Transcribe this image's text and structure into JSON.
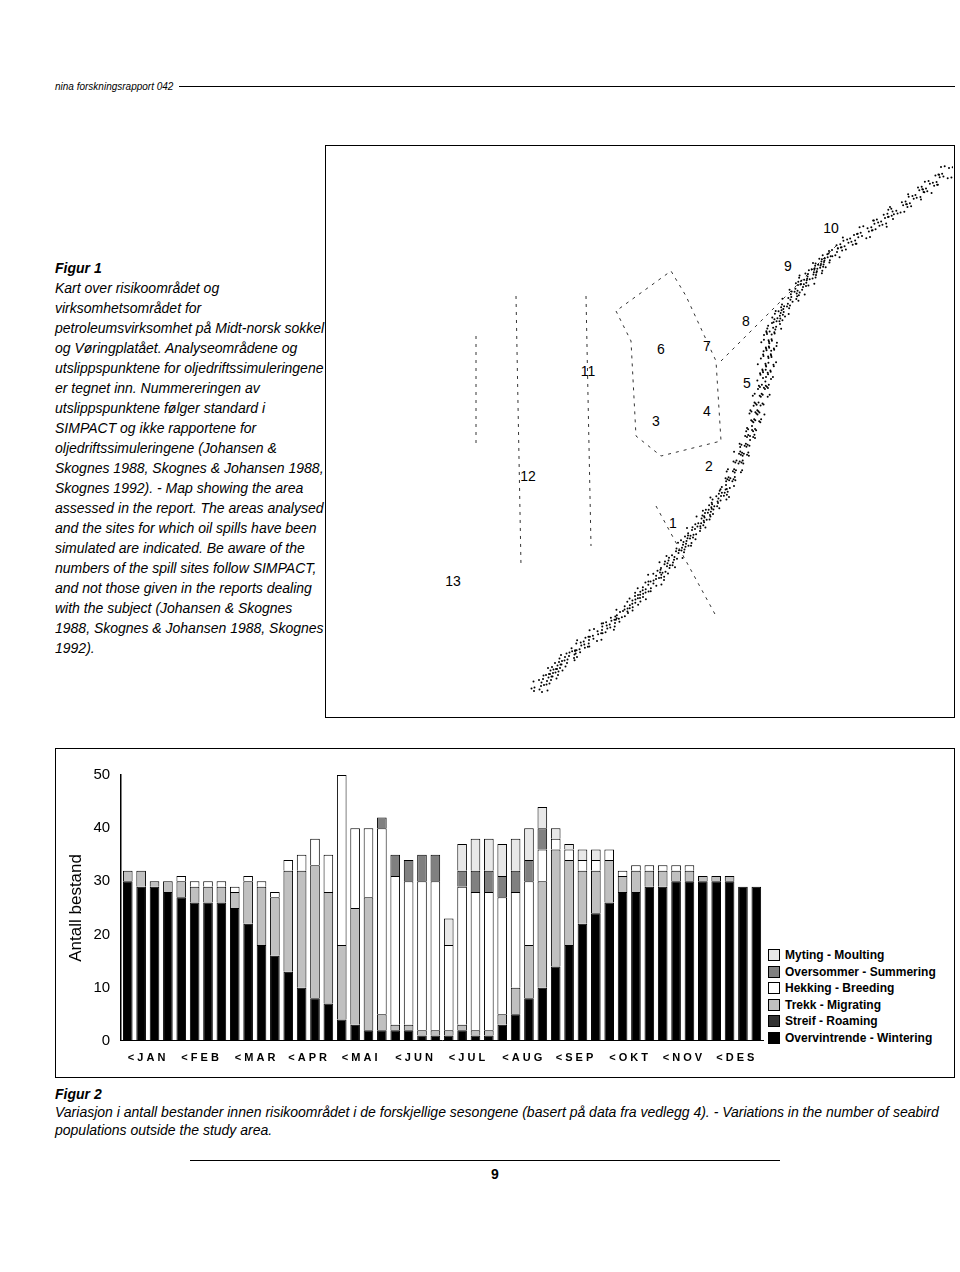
{
  "header": {
    "text": "nina forskningsrapport 042"
  },
  "figure1": {
    "title": "Figur 1",
    "caption": "Kart over risikoområdet og virksomhetsområdet for petroleumsvirksomhet på Midt-norsk sokkel og Vøringplatået. Analyseområdene og utslippspunktene for oljedriftssimuleringene er tegnet inn. Nummereringen av utslippspunktene følger standard i SIMPACT og ikke rapportene for oljedriftssimuleringene (Johansen & Skognes 1988, Skognes & Johansen 1988, Skognes 1992). - Map showing the area assessed in the report. The areas analysed and the sites for which oil spills have been simulated are indicated. Be aware of the numbers of the spill sites follow SIMPACT, and not those given in the reports dealing with the subject (Johansen & Skognes 1988, Skognes & Johansen 1988, Skognes 1992).",
    "map_labels": [
      "1",
      "2",
      "3",
      "4",
      "5",
      "6",
      "7",
      "8",
      "9",
      "10",
      "11",
      "12",
      "13"
    ]
  },
  "chart_data": {
    "type": "bar",
    "stacked": true,
    "y_label": "Antall bestand",
    "categories": [
      "< J A N",
      null,
      null,
      null,
      "< F E B",
      null,
      null,
      null,
      "< M A R",
      null,
      null,
      null,
      "< A P R",
      null,
      null,
      null,
      "< M A I",
      null,
      null,
      null,
      "< J U N",
      null,
      null,
      null,
      "< J U L",
      null,
      null,
      null,
      "< A U G",
      null,
      null,
      null,
      "< S E P",
      null,
      null,
      null,
      "< O K T",
      null,
      null,
      null,
      "< N O V",
      null,
      null,
      null,
      "< D E S",
      null,
      null,
      null
    ],
    "ylim": [
      0,
      50
    ],
    "yticks": [
      0,
      10,
      20,
      30,
      40,
      50
    ],
    "grid": false,
    "legend": "right",
    "series": [
      {
        "name": "Overvintrende - Wintering",
        "color": "#000000",
        "values": [
          30,
          29,
          29,
          28,
          27,
          26,
          26,
          26,
          25,
          22,
          18,
          16,
          13,
          10,
          8,
          7,
          4,
          3,
          2,
          2,
          2,
          2,
          1,
          1,
          1,
          2,
          1,
          1,
          3,
          5,
          8,
          10,
          14,
          18,
          22,
          24,
          26,
          28,
          28,
          29,
          29,
          30,
          30,
          30,
          30,
          30,
          29,
          29
        ]
      },
      {
        "name": "Streif - Roaming",
        "color": "#333333",
        "values": [
          0,
          0,
          0,
          0,
          0,
          0,
          0,
          0,
          0,
          0,
          0,
          0,
          0,
          0,
          0,
          0,
          0,
          0,
          0,
          0,
          0,
          0,
          0,
          0,
          0,
          0,
          0,
          0,
          0,
          0,
          0,
          0,
          0,
          0,
          0,
          0,
          0,
          0,
          0,
          0,
          0,
          0,
          0,
          0,
          0,
          0,
          0,
          0
        ]
      },
      {
        "name": "Trekk - Migrating",
        "color": "#c0c0c0",
        "values": [
          2,
          3,
          1,
          2,
          3,
          3,
          3,
          3,
          3,
          8,
          11,
          11,
          19,
          22,
          25,
          21,
          14,
          22,
          25,
          3,
          1,
          1,
          1,
          1,
          1,
          1,
          1,
          1,
          2,
          5,
          10,
          20,
          22,
          16,
          10,
          8,
          8,
          3,
          4,
          3,
          3,
          2,
          2,
          1,
          1,
          1,
          0,
          0
        ]
      },
      {
        "name": "Hekking - Breeding",
        "color": "#ffffff",
        "values": [
          0,
          0,
          0,
          0,
          1,
          1,
          1,
          1,
          1,
          1,
          1,
          1,
          2,
          3,
          5,
          7,
          32,
          15,
          13,
          35,
          28,
          27,
          28,
          28,
          16,
          26,
          26,
          26,
          22,
          18,
          12,
          6,
          2,
          2,
          2,
          2,
          2,
          1,
          1,
          1,
          1,
          1,
          1,
          0,
          0,
          0,
          0,
          0
        ]
      },
      {
        "name": "Oversommer - Summering",
        "color": "#808080",
        "values": [
          0,
          0,
          0,
          0,
          0,
          0,
          0,
          0,
          0,
          0,
          0,
          0,
          0,
          0,
          0,
          0,
          0,
          0,
          0,
          2,
          4,
          4,
          5,
          5,
          0,
          3,
          4,
          4,
          4,
          4,
          4,
          4,
          0,
          0,
          0,
          0,
          0,
          0,
          0,
          0,
          0,
          0,
          0,
          0,
          0,
          0,
          0,
          0
        ]
      },
      {
        "name": "Myting - Moulting",
        "color": "#e8e8e8",
        "values": [
          0,
          0,
          0,
          0,
          0,
          0,
          0,
          0,
          0,
          0,
          0,
          0,
          0,
          0,
          0,
          0,
          0,
          0,
          0,
          0,
          0,
          0,
          0,
          0,
          5,
          5,
          6,
          6,
          6,
          6,
          6,
          4,
          2,
          1,
          2,
          2,
          0,
          0,
          0,
          0,
          0,
          0,
          0,
          0,
          0,
          0,
          0,
          0
        ]
      }
    ]
  },
  "figure2": {
    "title": "Figur 2",
    "caption": "Variasjon i antall bestander innen risikoområdet i de forskjellige sesongene (basert på data fra vedlegg 4). - Variations in the number of seabird populations outside the study area."
  },
  "page_number": "9"
}
